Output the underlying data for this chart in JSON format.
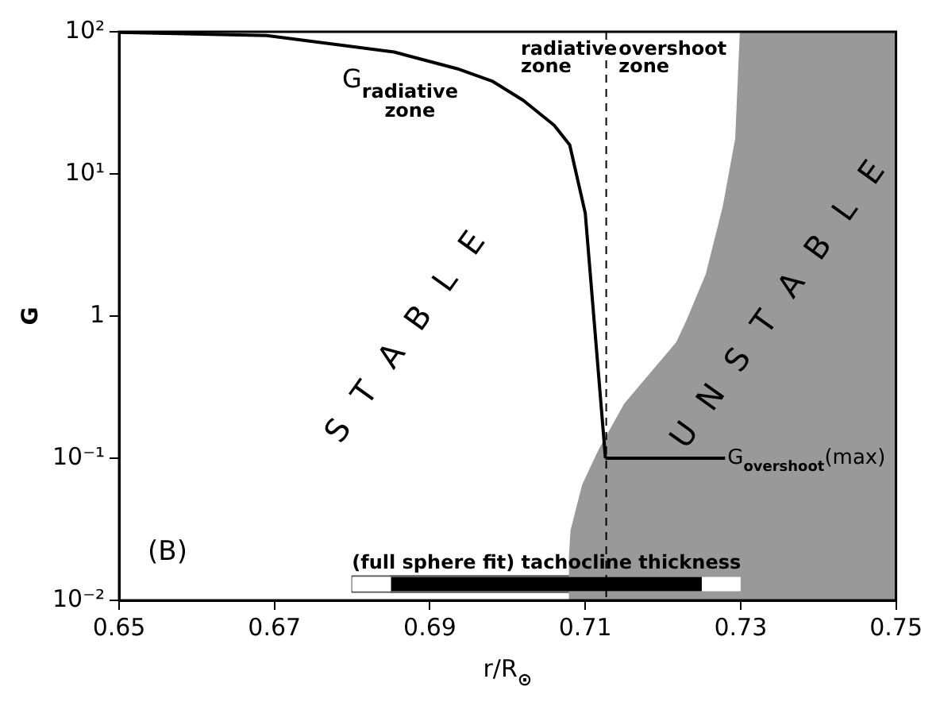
{
  "chart_data": {
    "type": "line",
    "xlabel": "r/R$_{⊙}$",
    "ylabel": "G",
    "xlim": [
      0.65,
      0.75
    ],
    "xticks": [
      0.65,
      0.67,
      0.69,
      0.71,
      0.73,
      0.75
    ],
    "ylim": [
      0.01,
      100
    ],
    "yticks": [
      {
        "value": 0.01,
        "label": "10⁻²"
      },
      {
        "value": 0.1,
        "label": "10⁻¹"
      },
      {
        "value": 1,
        "label": "1"
      },
      {
        "value": 10,
        "label": "10¹"
      },
      {
        "value": 100,
        "label": "10²"
      }
    ],
    "log": "y",
    "grid": false,
    "legend": false,
    "marker": "none",
    "line_style": "solid",
    "series": [
      {
        "type": "area",
        "color": "#999999",
        "x": [
          0.708,
          0.708,
          0.7082,
          0.7097,
          0.7118,
          0.7151,
          0.7218,
          0.7232,
          0.7256,
          0.7278,
          0.7294,
          0.73,
          0.75
        ],
        "values": [
          0.01,
          0.02,
          0.031,
          0.065,
          0.114,
          0.24,
          0.65,
          0.95,
          1.96,
          5.9,
          17.7,
          100,
          100
        ]
      },
      {
        "color": "#000000",
        "x": [
          0.65,
          0.669,
          0.6854,
          0.6935,
          0.698,
          0.702,
          0.706,
          0.708,
          0.71,
          0.7126
        ],
        "values": [
          99,
          94,
          72,
          55,
          45,
          33,
          22,
          16,
          5.3,
          0.1
        ]
      },
      {
        "color": "#000000",
        "x": [
          0.7126,
          0.728
        ],
        "values": [
          0.1,
          0.1
        ]
      },
      {
        "name": "(full sphere fit) tachocline thickness",
        "color": "#ffffff",
        "x": [
          0.68,
          0.73
        ],
        "values": [
          0.013,
          0.013
        ]
      },
      {
        "color": "#000000",
        "x": [
          0.685,
          0.725
        ],
        "values": [
          0.013,
          0.013
        ]
      }
    ],
    "ref_lines": [
      {
        "axis": "x",
        "value": 0.7127,
        "line_style": "dashed",
        "color": "#000000"
      }
    ],
    "annotations": [
      {
        "text": "G$_{overshoot}$(max)",
        "x": 0.7283,
        "y": 0.1
      },
      "G$_{radiative zone}$",
      "radiative zone",
      "overshoot zone",
      "STABLE",
      "UNSTABLE",
      "(B)"
    ]
  }
}
